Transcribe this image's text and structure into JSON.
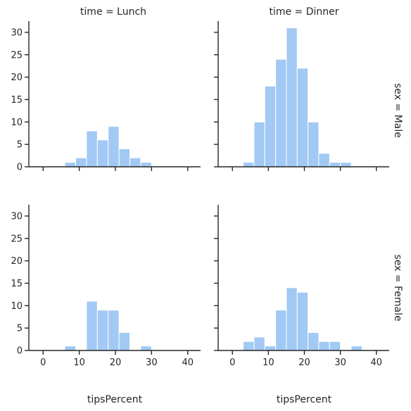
{
  "chart_data": {
    "type": "bar",
    "facet_grid": {
      "columns": [
        "time = Lunch",
        "time = Dinner"
      ],
      "rows": [
        "sex = Male",
        "sex = Female"
      ]
    },
    "xlabel": "tipsPercent",
    "ylabel": "",
    "xlim": [
      -2,
      42
    ],
    "ylim": [
      0,
      32.5
    ],
    "xticks": [
      0,
      10,
      20,
      30,
      40
    ],
    "yticks": [
      0,
      5,
      10,
      15,
      20,
      25,
      30
    ],
    "x_tick_labels": [
      "0",
      "10",
      "20",
      "30",
      "40"
    ],
    "y_tick_labels": [
      "0",
      "5",
      "10",
      "15",
      "20",
      "25",
      "30"
    ],
    "bin_edges": [
      3,
      6,
      9,
      12,
      15,
      18,
      21,
      24,
      27,
      30,
      33,
      36
    ],
    "bar_color": "#a1c9f4",
    "bar_edge_color": "#ffffff",
    "panels": [
      {
        "row": "sex = Male",
        "column": "time = Lunch",
        "values": [
          0,
          1,
          2,
          8,
          6,
          9,
          4,
          2,
          1,
          0,
          0
        ]
      },
      {
        "row": "sex = Male",
        "column": "time = Dinner",
        "values": [
          1,
          10,
          18,
          24,
          31,
          22,
          10,
          3,
          1,
          1,
          0
        ]
      },
      {
        "row": "sex = Female",
        "column": "time = Lunch",
        "values": [
          0,
          1,
          0,
          11,
          9,
          9,
          4,
          0,
          1,
          0,
          0
        ]
      },
      {
        "row": "sex = Female",
        "column": "time = Dinner",
        "values": [
          2,
          3,
          1,
          9,
          14,
          13,
          4,
          2,
          2,
          0,
          1
        ]
      }
    ]
  }
}
